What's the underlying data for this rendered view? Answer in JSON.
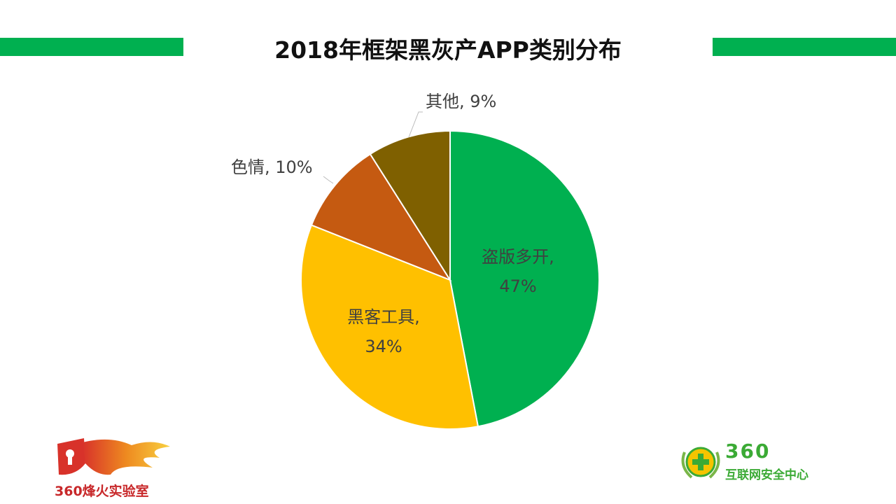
{
  "chart_data": {
    "type": "pie",
    "title": "2018年框架黑灰产APP类别分布",
    "start": "top",
    "direction": "clockwise",
    "slices": [
      {
        "label": "盗版多开",
        "value": 47,
        "text": "47%",
        "color": "#00B050"
      },
      {
        "label": "黑客工具",
        "value": 34,
        "text": "34%",
        "color": "#FFC000"
      },
      {
        "label": "色情",
        "value": 10,
        "text": "10%",
        "color": "#C55A11"
      },
      {
        "label": "其他",
        "value": 9,
        "text": "9%",
        "color": "#7F6000"
      }
    ]
  },
  "labels": {
    "s0_line1": "盗版多开,",
    "s0_line2": "47%",
    "s1_line1": "黑客工具,",
    "s1_line2": "34%",
    "s2": "色情, 10%",
    "s3": "其他, 9%"
  },
  "logos": {
    "left": "360烽火实验室",
    "right_top": "360",
    "right_bottom": "互联网安全中心"
  },
  "colors": {
    "accent": "#00B050"
  }
}
